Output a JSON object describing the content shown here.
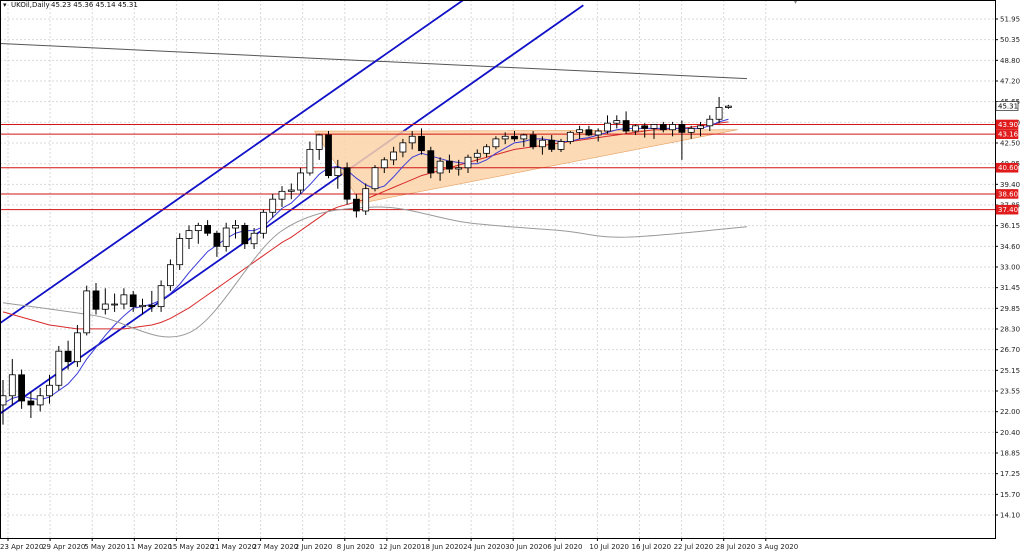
{
  "header": {
    "symbol_label": "UKOil,Daily",
    "ohlc": "45.23 45.36 45.14 45.31"
  },
  "colors": {
    "background": "#ffffff",
    "grid": "#d9d9d9",
    "channel": "#1010c8",
    "support_line": "#d21414",
    "ma_fast": "#3a3ad8",
    "ma_slow": "#d82a2a",
    "ma_long": "#9a9a9a",
    "trend_line": "#555555",
    "triangle_fill": "#fbd3a8",
    "bull_candle": "#ffffff",
    "bear_candle": "#000000",
    "tag_red": "#e01b1b"
  },
  "chart_data": {
    "type": "candlestick",
    "title": "UKOil,Daily",
    "y_ticks": [
      "51.95",
      "50.35",
      "48.80",
      "47.20",
      "45.65",
      "44.10",
      "42.50",
      "40.95",
      "39.40",
      "37.85",
      "36.15",
      "34.60",
      "33.00",
      "31.45",
      "29.85",
      "28.30",
      "26.70",
      "25.15",
      "23.55",
      "22.00",
      "20.40",
      "18.85",
      "17.25",
      "15.70",
      "14.10"
    ],
    "x_ticks": [
      "23 Apr 2020",
      "29 Apr 2020",
      "5 May 2020",
      "11 May 2020",
      "15 May 2020",
      "21 May 2020",
      "27 May 2020",
      "2 Jun 2020",
      "8 Jun 2020",
      "12 Jun 2020",
      "18 Jun 2020",
      "24 Jun 2020",
      "30 Jun 2020",
      "6 Jul 2020",
      "10 Jul 2020",
      "16 Jul 2020",
      "22 Jul 2020",
      "28 Jul 2020",
      "3 Aug 2020"
    ],
    "ylim": [
      14.1,
      51.95
    ],
    "grid": true,
    "candles": [
      [
        22.5,
        24.4,
        21.0,
        23.2
      ],
      [
        23.2,
        26.0,
        22.5,
        24.8
      ],
      [
        24.8,
        25.2,
        22.2,
        22.8
      ],
      [
        22.8,
        23.5,
        21.5,
        22.5
      ],
      [
        22.5,
        23.8,
        22.0,
        23.2
      ],
      [
        23.2,
        24.8,
        22.6,
        24.0
      ],
      [
        24.0,
        27.0,
        23.6,
        26.6
      ],
      [
        26.6,
        27.4,
        25.2,
        25.8
      ],
      [
        25.8,
        28.6,
        25.4,
        28.0
      ],
      [
        28.0,
        31.6,
        27.8,
        31.2
      ],
      [
        31.2,
        31.8,
        29.4,
        29.8
      ],
      [
        29.8,
        31.4,
        29.4,
        30.2
      ],
      [
        30.2,
        31.0,
        29.6,
        30.2
      ],
      [
        30.2,
        31.4,
        29.8,
        30.9
      ],
      [
        30.9,
        31.2,
        29.6,
        30.0
      ],
      [
        30.0,
        30.6,
        29.4,
        30.1
      ],
      [
        30.1,
        31.2,
        29.6,
        30.0
      ],
      [
        30.0,
        32.0,
        29.6,
        31.6
      ],
      [
        31.6,
        33.6,
        31.2,
        33.2
      ],
      [
        33.2,
        35.6,
        32.8,
        35.2
      ],
      [
        35.2,
        36.2,
        34.4,
        35.8
      ],
      [
        35.8,
        36.4,
        34.8,
        36.2
      ],
      [
        36.2,
        36.6,
        35.4,
        35.6
      ],
      [
        35.6,
        35.8,
        33.8,
        34.6
      ],
      [
        34.6,
        36.4,
        34.2,
        36.0
      ],
      [
        36.0,
        36.6,
        35.2,
        36.2
      ],
      [
        36.2,
        36.4,
        34.4,
        34.8
      ],
      [
        34.8,
        36.0,
        34.4,
        35.6
      ],
      [
        35.6,
        37.4,
        35.2,
        37.2
      ],
      [
        37.2,
        38.6,
        36.8,
        38.2
      ],
      [
        38.2,
        39.2,
        37.6,
        38.8
      ],
      [
        38.8,
        39.4,
        38.2,
        38.9
      ],
      [
        38.9,
        40.6,
        38.6,
        40.2
      ],
      [
        40.2,
        42.6,
        40.0,
        42.0
      ],
      [
        42.0,
        43.2,
        41.2,
        43.1
      ],
      [
        43.1,
        43.4,
        39.8,
        40.0
      ],
      [
        40.0,
        41.2,
        39.0,
        40.6
      ],
      [
        40.6,
        41.0,
        37.8,
        38.2
      ],
      [
        38.2,
        38.6,
        36.8,
        37.3
      ],
      [
        37.3,
        39.4,
        37.0,
        39.0
      ],
      [
        39.0,
        40.8,
        38.8,
        40.6
      ],
      [
        40.6,
        41.4,
        40.2,
        41.2
      ],
      [
        41.2,
        42.2,
        40.8,
        41.8
      ],
      [
        41.8,
        42.8,
        41.4,
        42.5
      ],
      [
        42.5,
        43.4,
        42.0,
        43.0
      ],
      [
        43.0,
        43.6,
        41.6,
        41.9
      ],
      [
        41.9,
        42.2,
        39.8,
        40.2
      ],
      [
        40.2,
        41.4,
        39.6,
        41.1
      ],
      [
        41.1,
        41.6,
        40.2,
        40.5
      ],
      [
        40.5,
        41.2,
        40.0,
        40.6
      ],
      [
        40.6,
        41.6,
        40.2,
        41.4
      ],
      [
        41.4,
        42.0,
        41.0,
        41.7
      ],
      [
        41.7,
        42.4,
        41.4,
        42.2
      ],
      [
        42.2,
        43.0,
        42.0,
        42.8
      ],
      [
        42.8,
        43.3,
        42.4,
        43.0
      ],
      [
        43.0,
        43.4,
        42.6,
        42.8
      ],
      [
        42.8,
        43.2,
        42.2,
        43.1
      ],
      [
        43.1,
        43.4,
        42.0,
        42.2
      ],
      [
        42.2,
        43.0,
        41.6,
        42.7
      ],
      [
        42.7,
        43.1,
        41.8,
        42.0
      ],
      [
        42.0,
        42.8,
        41.8,
        42.6
      ],
      [
        42.6,
        43.4,
        42.4,
        43.3
      ],
      [
        43.3,
        43.8,
        42.8,
        43.5
      ],
      [
        43.5,
        43.8,
        43.0,
        43.1
      ],
      [
        43.1,
        43.6,
        42.6,
        43.4
      ],
      [
        43.4,
        44.6,
        43.2,
        44.0
      ],
      [
        44.0,
        44.6,
        43.6,
        44.2
      ],
      [
        44.2,
        44.9,
        43.2,
        43.4
      ],
      [
        43.4,
        43.9,
        43.1,
        43.8
      ],
      [
        43.8,
        44.0,
        42.9,
        43.6
      ],
      [
        43.6,
        43.9,
        42.8,
        43.9
      ],
      [
        43.9,
        44.1,
        43.3,
        43.5
      ],
      [
        43.5,
        44.1,
        43.0,
        43.9
      ],
      [
        43.9,
        44.2,
        41.2,
        43.3
      ],
      [
        43.3,
        43.8,
        42.8,
        43.6
      ],
      [
        43.6,
        44.1,
        43.0,
        43.8
      ],
      [
        43.8,
        44.6,
        43.4,
        44.3
      ],
      [
        44.3,
        46.0,
        44.0,
        45.2
      ],
      [
        45.2,
        45.4,
        45.1,
        45.3
      ]
    ],
    "ma_fast": [
      22.6,
      23.0,
      23.2,
      23.0,
      22.9,
      23.1,
      23.6,
      24.1,
      24.9,
      26.0,
      26.9,
      27.8,
      28.6,
      29.3,
      29.9,
      30.0,
      30.2,
      30.5,
      31.0,
      31.7,
      32.6,
      33.4,
      34.2,
      34.7,
      35.2,
      35.6,
      35.8,
      35.8,
      36.1,
      36.8,
      37.5,
      37.9,
      38.6,
      39.3,
      40.1,
      40.6,
      40.7,
      40.4,
      39.8,
      39.3,
      39.0,
      39.2,
      39.9,
      40.7,
      41.4,
      41.7,
      41.5,
      41.3,
      41.1,
      41.0,
      40.9,
      40.9,
      41.2,
      41.7,
      42.1,
      42.5,
      42.6,
      42.8,
      42.8,
      42.7,
      42.6,
      42.6,
      42.8,
      42.9,
      43.1,
      43.3,
      43.5,
      43.6,
      43.6,
      43.6,
      43.6,
      43.6,
      43.6,
      43.6,
      43.6,
      43.6,
      43.8,
      44.1,
      44.3
    ],
    "ma_slow": [
      29.6,
      29.4,
      29.2,
      29.0,
      28.8,
      28.6,
      28.5,
      28.4,
      28.3,
      28.3,
      28.3,
      28.3,
      28.3,
      28.3,
      28.4,
      28.5,
      28.6,
      28.8,
      29.1,
      29.5,
      29.9,
      30.4,
      30.9,
      31.4,
      31.9,
      32.4,
      32.9,
      33.4,
      33.9,
      34.4,
      34.9,
      35.3,
      35.8,
      36.3,
      36.8,
      37.3,
      37.6,
      37.8,
      38.0,
      38.2,
      38.5,
      38.8,
      39.1,
      39.4,
      39.7,
      40.0,
      40.2,
      40.4,
      40.6,
      40.8,
      41.0,
      41.2,
      41.4,
      41.6,
      41.8,
      42.0,
      42.1,
      42.2,
      42.3,
      42.4,
      42.5,
      42.6,
      42.7,
      42.8,
      42.9,
      43.0,
      43.1,
      43.2,
      43.3,
      43.4,
      43.5,
      43.5,
      43.6,
      43.6,
      43.7,
      43.8,
      43.9,
      44.0,
      44.1
    ],
    "ma_long": [
      [
        0,
        30.3
      ],
      [
        10,
        29.3
      ],
      [
        20,
        28.0
      ],
      [
        30,
        35.8
      ],
      [
        40,
        37.6
      ],
      [
        50,
        36.4
      ],
      [
        60,
        35.8
      ],
      [
        67,
        35.3
      ],
      [
        80,
        36.1
      ]
    ],
    "trend_lines": [
      {
        "p1": [
          -1,
          50.1
        ],
        "p2": [
          80,
          47.4
        ],
        "style": "trend"
      },
      {
        "p1": [
          -1,
          28.4
        ],
        "p2": [
          49.7,
          53.5
        ],
        "style": "channel"
      },
      {
        "p1": [
          -1,
          21.5
        ],
        "p2": [
          62.4,
          53.0
        ],
        "style": "channel"
      }
    ],
    "triangle": [
      [
        33.5,
        43.4
      ],
      [
        44,
        43.4
      ],
      [
        79,
        43.5
      ],
      [
        38.5,
        37.9
      ]
    ],
    "horizontal_levels": [
      43.9,
      43.16,
      40.6,
      38.6,
      37.4
    ],
    "level_labels": [
      "43.90",
      "43.16",
      "40.60",
      "38.60",
      "37.40"
    ],
    "price_tags": [
      {
        "label": "45.31",
        "kind": "current"
      },
      {
        "label": "43.90",
        "kind": "level"
      },
      {
        "label": "43.16",
        "kind": "level"
      },
      {
        "label": "40.60",
        "kind": "level"
      },
      {
        "label": "38.60",
        "kind": "level"
      },
      {
        "label": "37.40",
        "kind": "level"
      }
    ]
  }
}
